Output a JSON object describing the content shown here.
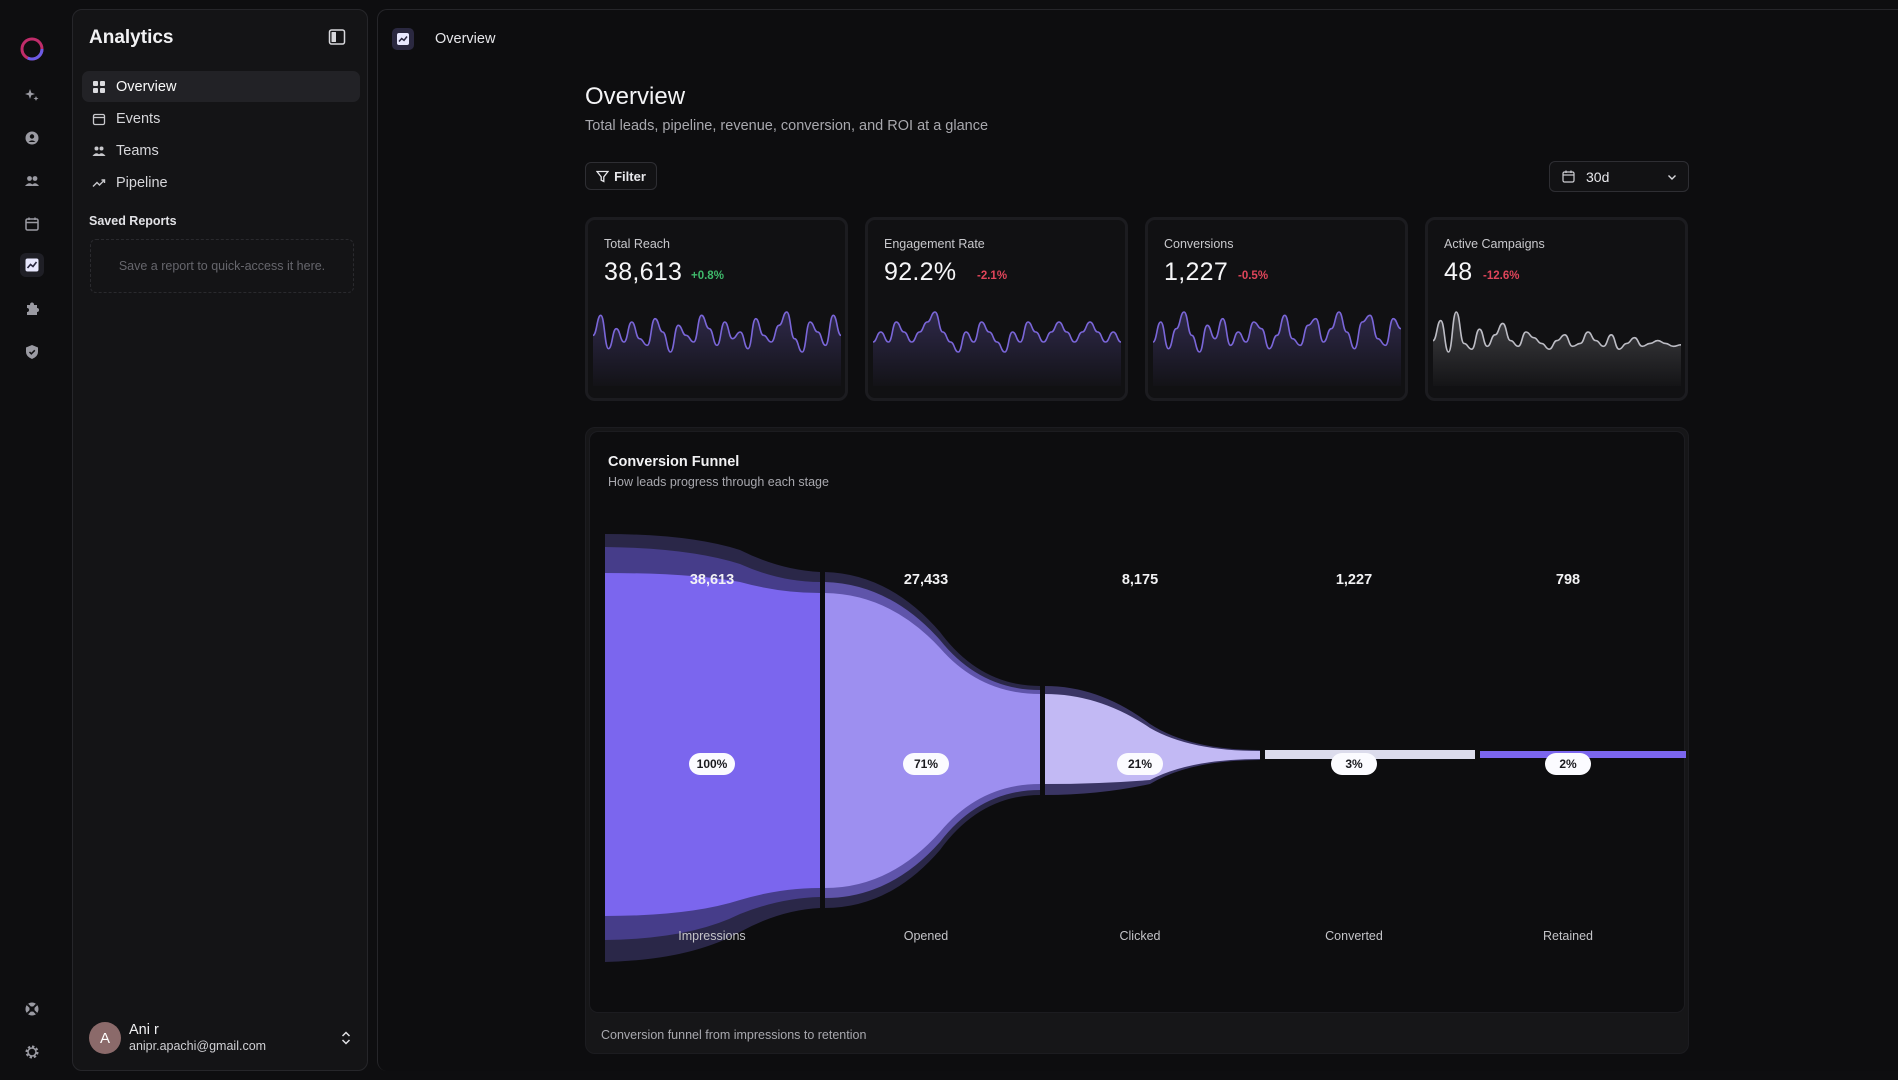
{
  "sidebar": {
    "title": "Analytics",
    "nav": [
      {
        "label": "Overview",
        "icon": "grid-icon",
        "active": true
      },
      {
        "label": "Events",
        "icon": "calendar-icon",
        "active": false
      },
      {
        "label": "Teams",
        "icon": "users-icon",
        "active": false
      },
      {
        "label": "Pipeline",
        "icon": "trending-up-icon",
        "active": false
      }
    ],
    "saved_reports_heading": "Saved Reports",
    "saved_reports_empty": "Save a report to quick-access it here.",
    "user": {
      "initial": "A",
      "name": "Ani r",
      "email": "anipr.apachi@gmail.com"
    }
  },
  "topbar": {
    "breadcrumb": "Overview"
  },
  "page": {
    "title": "Overview",
    "subtitle": "Total leads, pipeline, revenue, conversion, and ROI at a glance",
    "filter_label": "Filter",
    "range_value": "30d"
  },
  "kpis": [
    {
      "label": "Total Reach",
      "value": "38,613",
      "delta": "+0.8%",
      "trend": "up",
      "spark": [
        22,
        28,
        18,
        24,
        20,
        26,
        21,
        19,
        27,
        23,
        17,
        25,
        22,
        20,
        28,
        24,
        19,
        26,
        21,
        23,
        18,
        27,
        22,
        20,
        25,
        29,
        21,
        17,
        26,
        23,
        19,
        28,
        22
      ]
    },
    {
      "label": "Engagement Rate",
      "value": "92.2%",
      "delta": "-2.1%",
      "trend": "down",
      "spark": [
        30,
        31,
        30,
        32,
        31,
        30,
        31,
        32,
        33,
        31,
        30,
        29,
        31,
        30,
        32,
        31,
        30,
        29,
        31,
        30,
        32,
        31,
        30,
        31,
        32,
        31,
        30,
        31,
        32,
        31,
        30,
        31,
        30
      ]
    },
    {
      "label": "Conversions",
      "value": "1,227",
      "delta": "-0.5%",
      "trend": "down",
      "spark": [
        20,
        26,
        18,
        24,
        29,
        22,
        17,
        25,
        21,
        27,
        19,
        23,
        20,
        26,
        24,
        18,
        22,
        28,
        21,
        19,
        25,
        27,
        20,
        24,
        29,
        23,
        18,
        26,
        28,
        21,
        19,
        27,
        24
      ]
    },
    {
      "label": "Active Campaigns",
      "value": "48",
      "delta": "-12.6%",
      "trend": "down",
      "spark": [
        14,
        28,
        6,
        34,
        12,
        8,
        22,
        10,
        18,
        26,
        14,
        10,
        20,
        16,
        12,
        8,
        14,
        18,
        10,
        12,
        20,
        14,
        10,
        18,
        8,
        12,
        16,
        10,
        12,
        14,
        12,
        10,
        11
      ]
    }
  ],
  "funnel": {
    "title": "Conversion Funnel",
    "subtitle": "How leads progress through each stage",
    "caption": "Conversion funnel from impressions to retention",
    "stages": [
      {
        "label": "Impressions",
        "value": "38,613",
        "percent": "100%"
      },
      {
        "label": "Opened",
        "value": "27,433",
        "percent": "71%"
      },
      {
        "label": "Clicked",
        "value": "8,175",
        "percent": "21%"
      },
      {
        "label": "Converted",
        "value": "1,227",
        "percent": "3%"
      },
      {
        "label": "Retained",
        "value": "798",
        "percent": "2%"
      }
    ]
  },
  "colors": {
    "accent": "#7b66ee",
    "positive": "#3fb96b",
    "negative": "#e0455a"
  }
}
